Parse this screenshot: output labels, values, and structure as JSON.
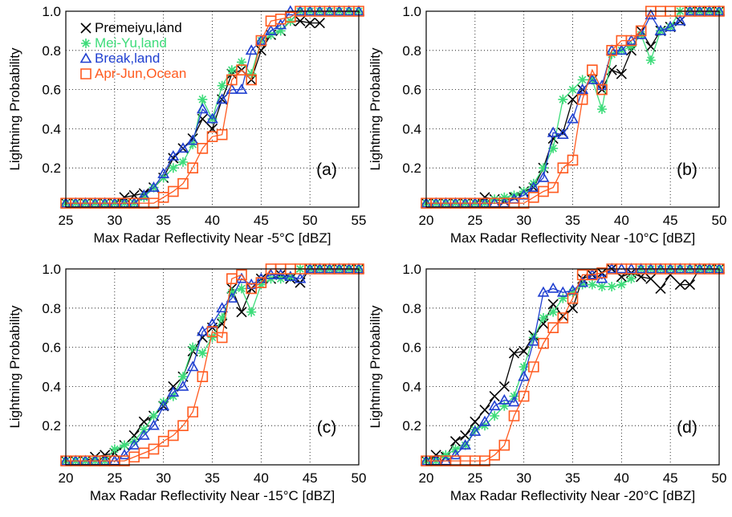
{
  "chart_data": [
    {
      "type": "line",
      "annotation": "(a)",
      "xlabel": "Max Radar Reflectivity Near -5°C [dBZ]",
      "ylabel": "Lightning Probability",
      "x": [
        25,
        26,
        27,
        28,
        29,
        30,
        31,
        32,
        33,
        34,
        35,
        36,
        37,
        38,
        39,
        40,
        41,
        42,
        43,
        44,
        45,
        46,
        47,
        48,
        49,
        50,
        51,
        52,
        53,
        54,
        55
      ],
      "xlim": [
        25,
        55
      ],
      "xticks": [
        25,
        30,
        35,
        40,
        45,
        50,
        55
      ],
      "ylim": [
        0,
        1
      ],
      "yticks": [
        0.2,
        0.4,
        0.6,
        0.8,
        {
          "value": 1,
          "label": "1.0"
        }
      ],
      "grid": true,
      "legend": "top-left",
      "series": [
        {
          "name": "Premeiyu,land",
          "color": "#000000",
          "marker": "x",
          "values": [
            0.02,
            0.02,
            0.02,
            0.02,
            0.02,
            0.02,
            0.05,
            0.06,
            0.07,
            0.1,
            0.15,
            0.25,
            0.3,
            0.35,
            0.45,
            0.4,
            0.55,
            0.68,
            0.7,
            0.65,
            0.8,
            0.88,
            0.9,
            0.95,
            0.95,
            0.94,
            0.94,
            null,
            null,
            null,
            null
          ]
        },
        {
          "name": "Mei-Yu,land",
          "color": "#3ddc7a",
          "marker": "asterisk",
          "values": [
            0.02,
            0.02,
            0.02,
            0.02,
            0.02,
            0.02,
            0.02,
            0.02,
            0.05,
            0.1,
            0.15,
            0.2,
            0.23,
            0.32,
            0.55,
            0.45,
            0.62,
            0.7,
            0.74,
            0.68,
            0.85,
            0.88,
            0.9,
            0.95,
            1,
            1,
            1,
            1,
            1,
            1,
            1
          ]
        },
        {
          "name": "Break,land",
          "color": "#1f3fd0",
          "marker": "triangle",
          "values": [
            0.02,
            0.02,
            0.02,
            0.02,
            0.02,
            0.02,
            0.02,
            0.02,
            0.06,
            0.1,
            0.17,
            0.26,
            0.3,
            0.34,
            0.5,
            0.45,
            0.55,
            0.6,
            0.6,
            0.8,
            0.85,
            0.9,
            0.93,
            1,
            1,
            1,
            1,
            1,
            1,
            1,
            1
          ]
        },
        {
          "name": "Apr-Jun,Ocean",
          "color": "#ff5a1f",
          "marker": "square",
          "values": [
            0.02,
            0.02,
            0.02,
            0.02,
            0.02,
            0.02,
            0.02,
            0.02,
            0.02,
            0.02,
            0.05,
            0.08,
            0.12,
            0.2,
            0.3,
            0.36,
            0.37,
            0.65,
            0.7,
            0.65,
            0.85,
            0.95,
            0.96,
            0.97,
            1,
            1,
            1,
            1,
            1,
            1,
            1
          ]
        }
      ]
    },
    {
      "type": "line",
      "annotation": "(b)",
      "xlabel": "Max Radar Reflectivity Near -10°C [dBZ]",
      "ylabel": "Lightning Probability",
      "x": [
        20,
        21,
        22,
        23,
        24,
        25,
        26,
        27,
        28,
        29,
        30,
        31,
        32,
        33,
        34,
        35,
        36,
        37,
        38,
        39,
        40,
        41,
        42,
        43,
        44,
        45,
        46,
        47,
        48,
        49,
        50
      ],
      "xlim": [
        20,
        50
      ],
      "xticks": [
        20,
        25,
        30,
        35,
        40,
        45,
        50
      ],
      "ylim": [
        0,
        1
      ],
      "yticks": [
        0.2,
        0.4,
        0.6,
        0.8,
        {
          "value": 1,
          "label": "1.0"
        }
      ],
      "grid": true,
      "series": [
        {
          "name": "Premeiyu,land",
          "color": "#000000",
          "marker": "x",
          "values": [
            0.02,
            0.02,
            0.02,
            0.02,
            0.02,
            0.02,
            0.05,
            0.04,
            0.03,
            0.05,
            0.08,
            0.1,
            0.2,
            0.35,
            0.38,
            0.55,
            0.6,
            0.65,
            0.6,
            0.7,
            0.68,
            0.8,
            0.9,
            0.82,
            0.9,
            0.92,
            0.95,
            1,
            1,
            1,
            1
          ]
        },
        {
          "name": "Mei-Yu,land",
          "color": "#3ddc7a",
          "marker": "asterisk",
          "values": [
            0.02,
            0.02,
            0.02,
            0.02,
            0.02,
            0.02,
            0.02,
            0.04,
            0.05,
            0.06,
            0.08,
            0.12,
            0.2,
            0.3,
            0.55,
            0.6,
            0.65,
            0.65,
            0.5,
            0.78,
            0.8,
            0.82,
            0.88,
            0.75,
            0.9,
            0.92,
            1,
            1,
            1,
            1,
            1
          ]
        },
        {
          "name": "Break,land",
          "color": "#1f3fd0",
          "marker": "triangle",
          "values": [
            0.02,
            0.02,
            0.02,
            0.02,
            0.02,
            0.02,
            0.02,
            0.02,
            0.02,
            0.04,
            0.06,
            0.1,
            0.15,
            0.38,
            0.37,
            0.45,
            0.6,
            0.65,
            0.62,
            0.8,
            0.8,
            0.85,
            0.88,
            0.98,
            0.9,
            0.92,
            0.95,
            1,
            1,
            1,
            1
          ]
        },
        {
          "name": "Apr-Jun,Ocean",
          "color": "#ff5a1f",
          "marker": "square",
          "values": [
            0.02,
            0.02,
            0.02,
            0.02,
            0.02,
            0.02,
            0.02,
            0.02,
            0.02,
            0.02,
            0.02,
            0.05,
            0.08,
            0.1,
            0.2,
            0.24,
            0.55,
            0.7,
            0.6,
            0.8,
            0.85,
            0.85,
            0.9,
            1,
            1,
            1,
            1,
            1,
            1,
            1,
            1
          ]
        }
      ]
    },
    {
      "type": "line",
      "annotation": "(c)",
      "xlabel": "Max Radar Reflectivity Near -15°C [dBZ]",
      "ylabel": "Lightning Probability",
      "x": [
        20,
        21,
        22,
        23,
        24,
        25,
        26,
        27,
        28,
        29,
        30,
        31,
        32,
        33,
        34,
        35,
        36,
        37,
        38,
        39,
        40,
        41,
        42,
        43,
        44,
        45,
        46,
        47,
        48,
        49,
        50
      ],
      "xlim": [
        20,
        50
      ],
      "xticks": [
        20,
        25,
        30,
        35,
        40,
        45,
        50
      ],
      "ylim": [
        0,
        1
      ],
      "yticks": [
        0.2,
        0.4,
        0.6,
        0.8,
        {
          "value": 1,
          "label": "1.0"
        }
      ],
      "grid": true,
      "series": [
        {
          "name": "Premeiyu,land",
          "color": "#000000",
          "marker": "x",
          "values": [
            0.02,
            0.02,
            0.02,
            0.04,
            0.05,
            0.06,
            0.1,
            0.15,
            0.22,
            0.25,
            0.3,
            0.4,
            0.45,
            0.58,
            0.65,
            0.7,
            0.72,
            0.9,
            0.78,
            0.9,
            0.95,
            0.95,
            0.97,
            0.95,
            0.93,
            1,
            1,
            1,
            1,
            1,
            1
          ]
        },
        {
          "name": "Mei-Yu,land",
          "color": "#3ddc7a",
          "marker": "asterisk",
          "values": [
            0.02,
            0.02,
            0.02,
            0.02,
            0.02,
            0.08,
            0.1,
            0.12,
            0.18,
            0.25,
            0.32,
            0.35,
            0.45,
            0.6,
            0.57,
            0.65,
            0.75,
            0.88,
            0.9,
            0.78,
            0.92,
            0.95,
            0.95,
            0.96,
            1,
            1,
            1,
            1,
            1,
            1,
            1
          ]
        },
        {
          "name": "Break,land",
          "color": "#1f3fd0",
          "marker": "triangle",
          "values": [
            0.02,
            0.02,
            0.02,
            0.02,
            0.02,
            0.02,
            0.05,
            0.1,
            0.15,
            0.2,
            0.3,
            0.37,
            0.4,
            0.5,
            0.68,
            0.72,
            0.8,
            0.85,
            0.95,
            0.92,
            0.95,
            0.97,
            0.97,
            0.96,
            0.95,
            1,
            1,
            1,
            1,
            1,
            1
          ]
        },
        {
          "name": "Apr-Jun,Ocean",
          "color": "#ff5a1f",
          "marker": "square",
          "values": [
            0.02,
            0.02,
            0.02,
            0.02,
            0.02,
            0.02,
            0.02,
            0.04,
            0.06,
            0.08,
            0.12,
            0.15,
            0.2,
            0.27,
            0.45,
            0.68,
            0.65,
            0.95,
            0.97,
            0.9,
            0.93,
            1,
            1,
            1,
            1,
            1,
            1,
            1,
            1,
            1,
            1
          ]
        }
      ]
    },
    {
      "type": "line",
      "annotation": "(d)",
      "xlabel": "Max Radar Reflectivity Near -20°C [dBZ]",
      "ylabel": "Lightning Probability",
      "x": [
        20,
        21,
        22,
        23,
        24,
        25,
        26,
        27,
        28,
        29,
        30,
        31,
        32,
        33,
        34,
        35,
        36,
        37,
        38,
        39,
        40,
        41,
        42,
        43,
        44,
        45,
        46,
        47,
        48,
        49,
        50
      ],
      "xlim": [
        20,
        50
      ],
      "xticks": [
        20,
        25,
        30,
        35,
        40,
        45,
        50
      ],
      "ylim": [
        0,
        1
      ],
      "yticks": [
        0.2,
        0.4,
        0.6,
        0.8,
        {
          "value": 1,
          "label": "1.0"
        }
      ],
      "grid": true,
      "series": [
        {
          "name": "Premeiyu,land",
          "color": "#000000",
          "marker": "x",
          "values": [
            0.02,
            0.05,
            0.04,
            0.12,
            0.15,
            0.22,
            0.28,
            0.35,
            0.4,
            0.57,
            0.58,
            0.66,
            0.72,
            0.82,
            0.76,
            0.8,
            0.95,
            0.97,
            0.98,
            1,
            0.96,
            0.98,
            0.96,
            0.95,
            0.9,
            0.97,
            0.92,
            0.92,
            1,
            1,
            1
          ]
        },
        {
          "name": "Mei-Yu,land",
          "color": "#3ddc7a",
          "marker": "asterisk",
          "values": [
            0.02,
            0.02,
            0.05,
            0.08,
            0.1,
            0.18,
            0.2,
            0.25,
            0.3,
            0.35,
            0.5,
            0.65,
            0.75,
            0.78,
            0.85,
            0.88,
            0.92,
            0.92,
            0.91,
            0.91,
            0.92,
            0.95,
            1,
            1,
            1,
            1,
            1,
            1,
            1,
            1,
            1
          ]
        },
        {
          "name": "Break,land",
          "color": "#1f3fd0",
          "marker": "triangle",
          "values": [
            0.02,
            0.02,
            0.02,
            0.05,
            0.1,
            0.17,
            0.22,
            0.3,
            0.33,
            0.32,
            0.45,
            0.63,
            0.88,
            0.9,
            0.88,
            0.89,
            0.93,
            0.97,
            0.95,
            1,
            1,
            1,
            1,
            1,
            1,
            1,
            1,
            1,
            1,
            1,
            1
          ]
        },
        {
          "name": "Apr-Jun,Ocean",
          "color": "#ff5a1f",
          "marker": "square",
          "values": [
            0.02,
            0.02,
            0.02,
            0.02,
            0.02,
            0.02,
            0.02,
            0.05,
            0.1,
            0.25,
            0.35,
            0.5,
            0.62,
            0.7,
            0.75,
            0.85,
            0.97,
            0.97,
            0.98,
            1,
            1,
            1,
            1,
            1,
            1,
            1,
            1,
            1,
            1,
            1,
            1
          ]
        }
      ]
    }
  ]
}
